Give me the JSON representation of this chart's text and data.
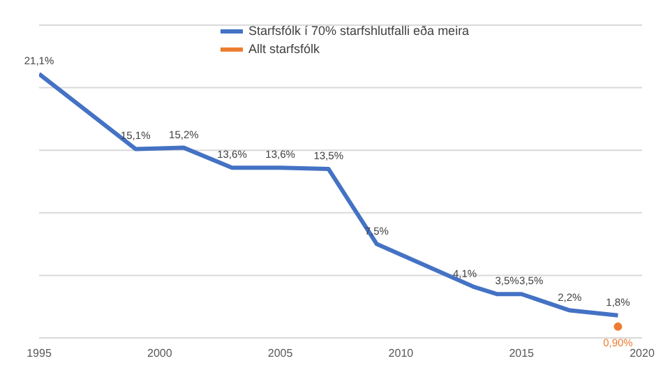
{
  "chart_data": {
    "type": "line",
    "x": [
      1995,
      1999,
      2001,
      2003,
      2005,
      2007,
      2009,
      2013,
      2014,
      2015,
      2017,
      2019
    ],
    "series": [
      {
        "name": "Starfsfólk í 70% starfshlutfalli eða meira",
        "color": "#4472c4",
        "values": [
          21.1,
          15.1,
          15.2,
          13.6,
          13.6,
          13.5,
          7.5,
          4.1,
          3.5,
          3.5,
          2.2,
          1.8
        ],
        "value_labels": [
          "21,1%",
          "15,1%",
          "15,2%",
          "13,6%",
          "13,6%",
          "13,5%",
          "7,5%",
          "4,1%",
          "3,5%",
          "3,5%",
          "2,2%",
          "1,8%"
        ]
      },
      {
        "name": "Allt starfsfólk",
        "color": "#ed7d31",
        "x": [
          2019
        ],
        "values": [
          0.9
        ],
        "value_labels": [
          "0,90%"
        ],
        "marker": "circle"
      }
    ],
    "xlim": [
      1995,
      2020
    ],
    "xticks": [
      1995,
      2000,
      2005,
      2010,
      2015,
      2020
    ],
    "ylim": [
      0,
      25
    ],
    "yticks": [
      {
        "value": 0,
        "label": null
      },
      {
        "value": 5,
        "label": null
      },
      {
        "value": 10,
        "label": null
      },
      {
        "value": 15,
        "label": null
      },
      {
        "value": 20,
        "label": null
      },
      {
        "value": 25,
        "label": null
      }
    ],
    "tick_labels": "x",
    "grid": "y",
    "legend": "top right",
    "marker": "none",
    "line_style": "solid"
  }
}
